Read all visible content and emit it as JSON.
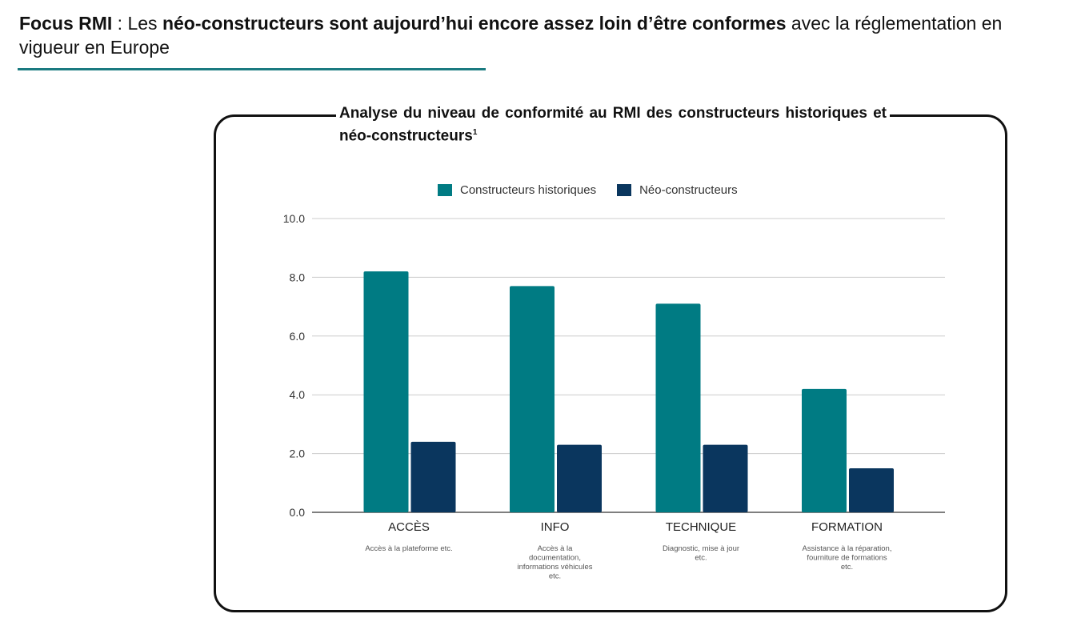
{
  "header": {
    "parts": [
      {
        "text": "Focus RMI",
        "bold": true
      },
      {
        "text": " : Les ",
        "bold": false
      },
      {
        "text": "néo-constructeurs sont aujourd’hui encore assez loin d’être conformes",
        "bold": true
      },
      {
        "text": " avec la réglementation en vigueur en Europe",
        "bold": false
      }
    ]
  },
  "colors": {
    "accent": "#1a7a80",
    "historiques": "#007b83",
    "neo": "#0a365e"
  },
  "chart_data": {
    "type": "bar",
    "title": "Analyse du niveau de conformité au RMI des constructeurs historiques et néo-constructeurs",
    "title_footnote": "1",
    "categories": [
      "ACCÈS",
      "INFO",
      "TECHNIQUE",
      "FORMATION"
    ],
    "category_descriptions": [
      [
        "Accès à la plateforme etc."
      ],
      [
        "Accès à la",
        "documentation,",
        "informations véhicules",
        "etc."
      ],
      [
        "Diagnostic, mise à jour",
        "etc."
      ],
      [
        "Assistance à la réparation,",
        "fourniture de formations",
        "etc."
      ]
    ],
    "series": [
      {
        "name": "Constructeurs historiques",
        "values": [
          8.2,
          7.7,
          7.1,
          4.2
        ]
      },
      {
        "name": "Néo-constructeurs",
        "values": [
          2.4,
          2.3,
          2.3,
          1.5
        ]
      }
    ],
    "yticks": [
      "0.0",
      "2.0",
      "4.0",
      "6.0",
      "8.0",
      "10.0"
    ],
    "ylim": [
      0,
      10
    ],
    "grid": true,
    "legend_position": "top-center",
    "xlabel": "",
    "ylabel": ""
  }
}
